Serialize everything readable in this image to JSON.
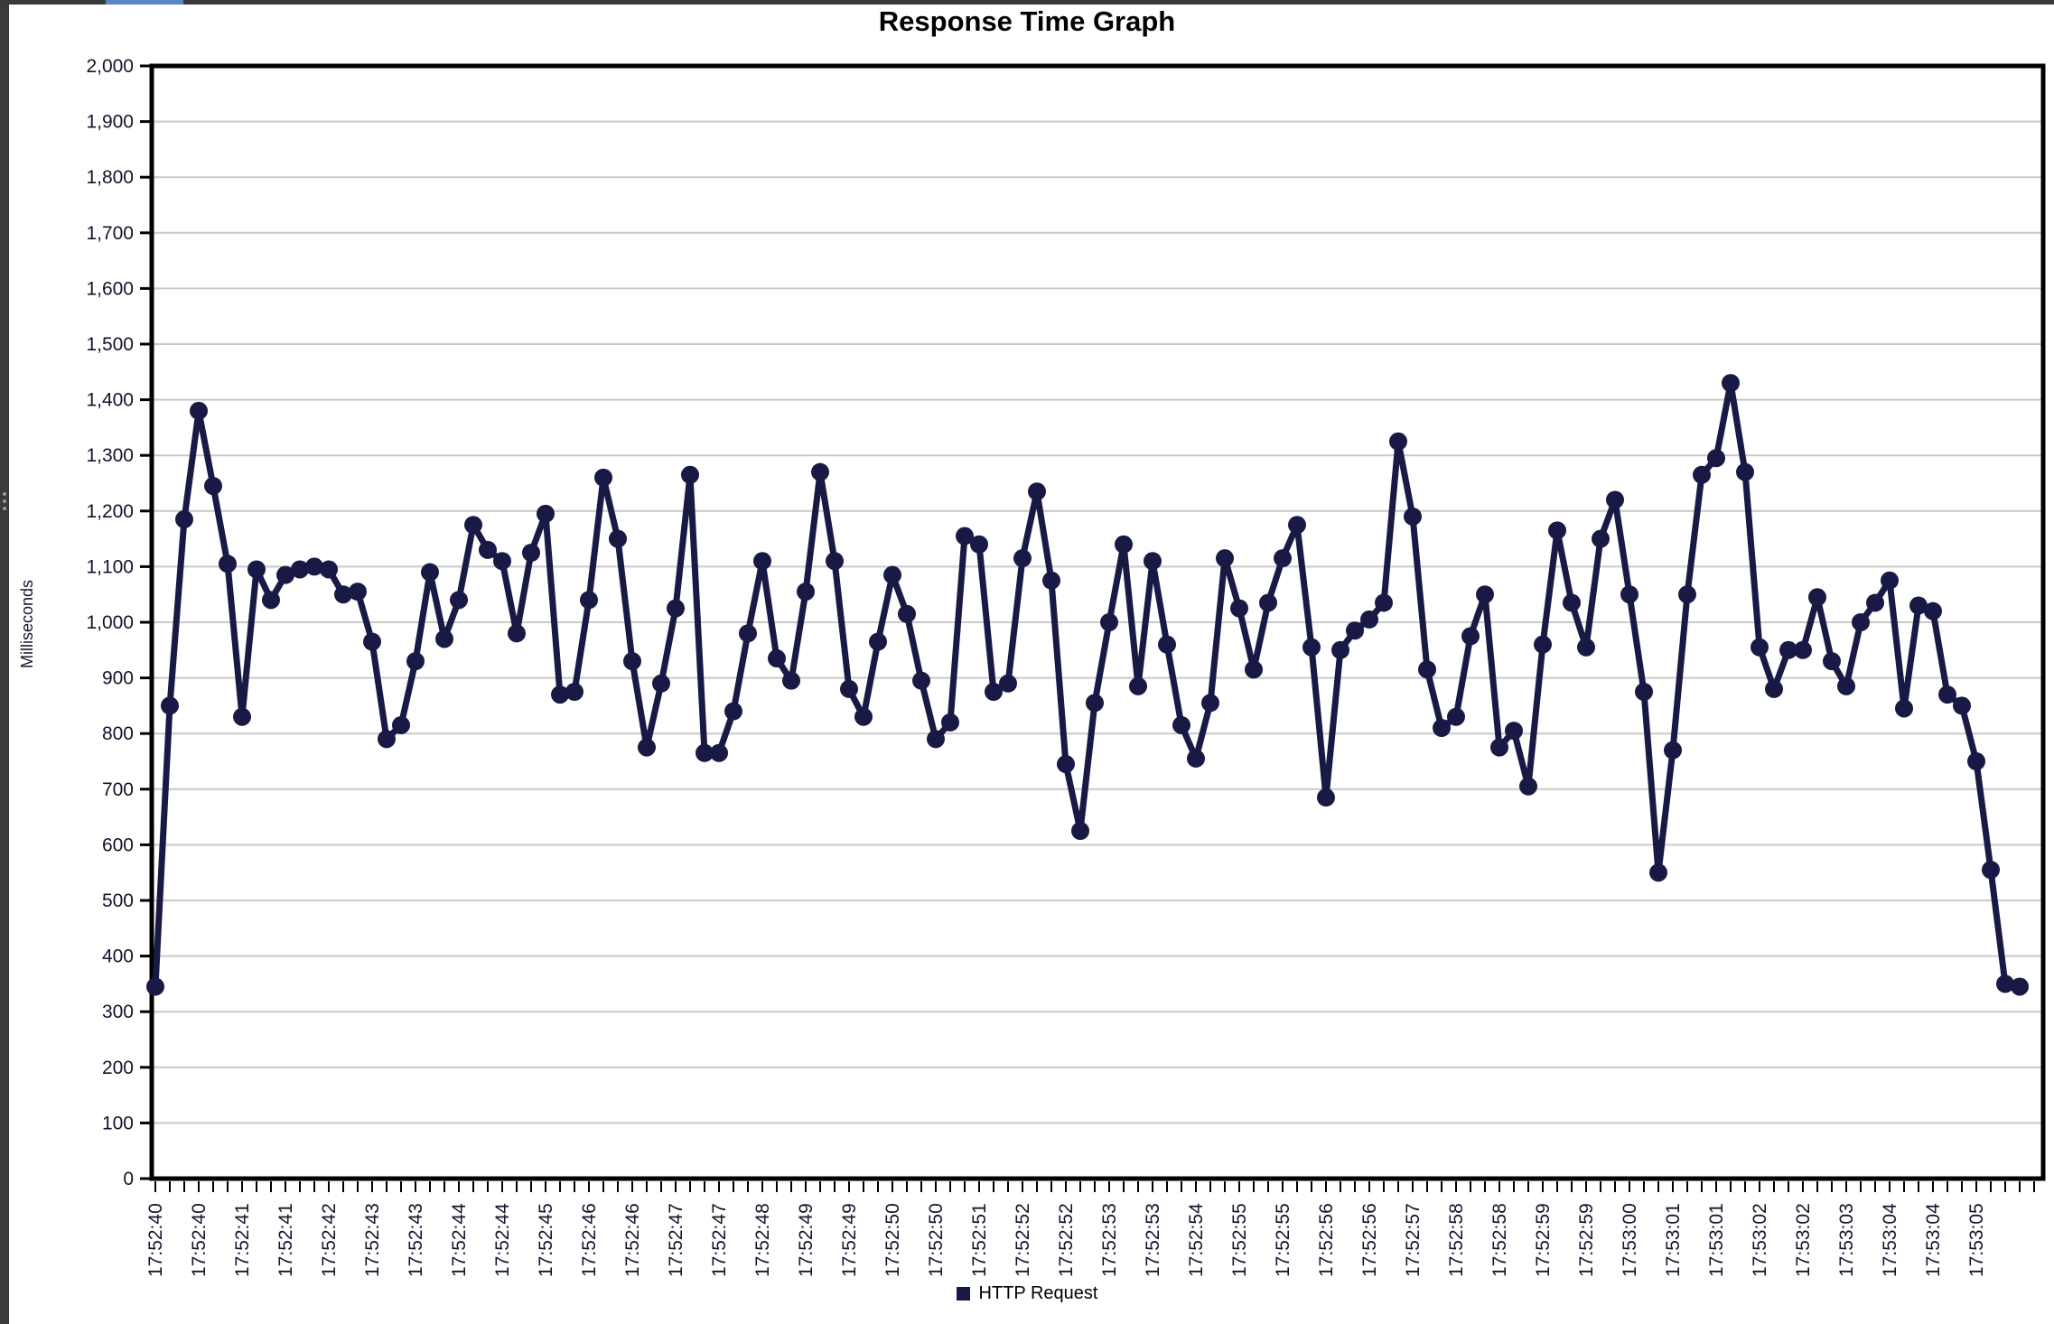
{
  "window": {
    "top_bar_color": "#3a3a3a",
    "tab_indicator_color": "#5c85c6",
    "edge_strip_color": "#3b3b3b"
  },
  "colors": {
    "series": "#191945",
    "grid": "#c9c9c9",
    "axis": "#000000",
    "tick_text": "#14142b"
  },
  "chart_data": {
    "type": "line",
    "title": "Response Time Graph",
    "ylabel": "Milliseconds",
    "ylim": [
      0,
      2000
    ],
    "y_tick_step": 100,
    "grid": true,
    "legend_position": "bottom-center",
    "label_every_n_points": 3,
    "x_tick_labels": [
      "17:52:40",
      "17:52:40",
      "17:52:41",
      "17:52:41",
      "17:52:42",
      "17:52:43",
      "17:52:43",
      "17:52:44",
      "17:52:44",
      "17:52:45",
      "17:52:46",
      "17:52:46",
      "17:52:47",
      "17:52:47",
      "17:52:48",
      "17:52:49",
      "17:52:49",
      "17:52:50",
      "17:52:50",
      "17:52:51",
      "17:52:52",
      "17:52:52",
      "17:52:53",
      "17:52:53",
      "17:52:54",
      "17:52:55",
      "17:52:55",
      "17:52:56",
      "17:52:56",
      "17:52:57",
      "17:52:58",
      "17:52:58",
      "17:52:59",
      "17:52:59",
      "17:53:00",
      "17:53:01",
      "17:53:01",
      "17:53:02",
      "17:53:02",
      "17:53:03",
      "17:53:04",
      "17:53:04",
      "17:53:05"
    ],
    "series": [
      {
        "name": "HTTP Request",
        "color": "#191945",
        "values": [
          345,
          850,
          1185,
          1380,
          1245,
          1105,
          830,
          1095,
          1040,
          1085,
          1095,
          1100,
          1095,
          1050,
          1055,
          965,
          790,
          815,
          930,
          1090,
          970,
          1040,
          1175,
          1130,
          1110,
          980,
          1125,
          1195,
          870,
          875,
          1040,
          1260,
          1150,
          930,
          775,
          890,
          1025,
          1265,
          765,
          765,
          840,
          980,
          1110,
          935,
          895,
          1055,
          1270,
          1110,
          880,
          830,
          965,
          1085,
          1015,
          895,
          790,
          820,
          1155,
          1140,
          875,
          890,
          1115,
          1235,
          1075,
          745,
          625,
          855,
          1000,
          1140,
          885,
          1110,
          960,
          815,
          755,
          855,
          1115,
          1025,
          915,
          1035,
          1115,
          1175,
          955,
          685,
          950,
          985,
          1005,
          1035,
          1325,
          1190,
          915,
          810,
          830,
          975,
          1050,
          775,
          805,
          705,
          960,
          1165,
          1035,
          955,
          1150,
          1220,
          1050,
          875,
          550,
          770,
          1050,
          1265,
          1295,
          1430,
          1270,
          955,
          880,
          950,
          950,
          1045,
          930,
          885,
          1000,
          1035,
          1075,
          845,
          1030,
          1020,
          870,
          850,
          750,
          555,
          350,
          345
        ]
      }
    ]
  }
}
